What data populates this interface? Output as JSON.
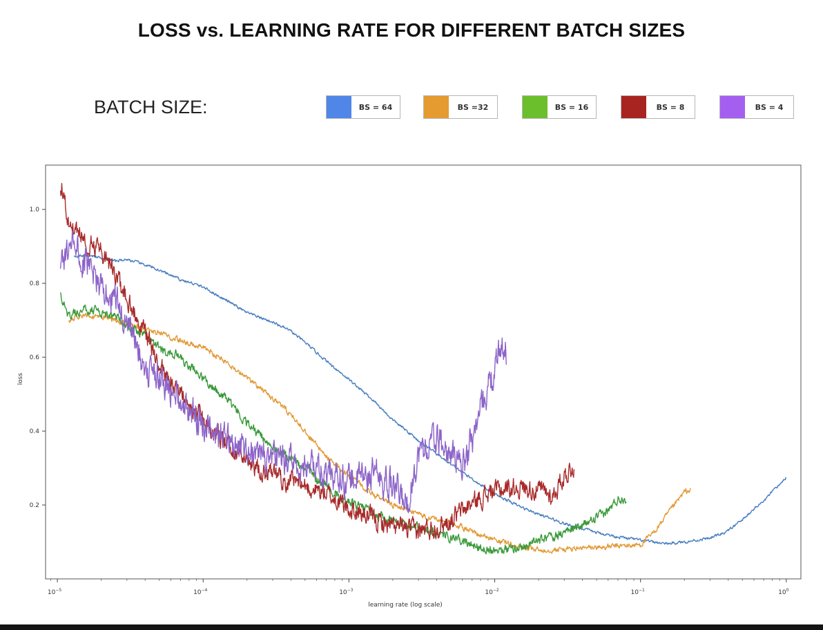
{
  "chart_data": {
    "type": "line",
    "title": "LOSS vs. LEARNING RATE  FOR DIFFERENT BATCH SIZES",
    "legend_title": "BATCH SIZE:",
    "xlabel": "learning rate (log scale)",
    "ylabel": "loss",
    "x_scale": "log",
    "xlim": [
      8.3e-06,
      1.26
    ],
    "ylim": [
      0.0,
      1.12
    ],
    "x_ticks": [
      {
        "value": 1e-05,
        "base": "10",
        "exp": "−5"
      },
      {
        "value": 0.0001,
        "base": "10",
        "exp": "−4"
      },
      {
        "value": 0.001,
        "base": "10",
        "exp": "−3"
      },
      {
        "value": 0.01,
        "base": "10",
        "exp": "−2"
      },
      {
        "value": 0.1,
        "base": "10",
        "exp": "−1"
      },
      {
        "value": 1,
        "base": "10",
        "exp": "0"
      }
    ],
    "y_ticks": [
      "0.2",
      "0.4",
      "0.6",
      "0.8",
      "1.0"
    ],
    "legend_placement": "top",
    "grid": false,
    "series": [
      {
        "name": "BS = 64",
        "color": "#4f86e8",
        "line_color": "#4a7fc1",
        "noise": 0.003,
        "points": [
          [
            1.3e-05,
            0.875
          ],
          [
            1.6e-05,
            0.875
          ],
          [
            2e-05,
            0.87
          ],
          [
            2.5e-05,
            0.86
          ],
          [
            3e-05,
            0.865
          ],
          [
            4e-05,
            0.85
          ],
          [
            5e-05,
            0.835
          ],
          [
            7e-05,
            0.81
          ],
          [
            0.0001,
            0.79
          ],
          [
            0.00015,
            0.75
          ],
          [
            0.0002,
            0.72
          ],
          [
            0.0003,
            0.695
          ],
          [
            0.0004,
            0.67
          ],
          [
            0.0005,
            0.64
          ],
          [
            0.0007,
            0.59
          ],
          [
            0.001,
            0.54
          ],
          [
            0.0015,
            0.48
          ],
          [
            0.002,
            0.43
          ],
          [
            0.003,
            0.375
          ],
          [
            0.005,
            0.31
          ],
          [
            0.008,
            0.255
          ],
          [
            0.01,
            0.23
          ],
          [
            0.015,
            0.195
          ],
          [
            0.02,
            0.175
          ],
          [
            0.03,
            0.15
          ],
          [
            0.05,
            0.125
          ],
          [
            0.08,
            0.11
          ],
          [
            0.12,
            0.1
          ],
          [
            0.15,
            0.095
          ],
          [
            0.2,
            0.1
          ],
          [
            0.3,
            0.11
          ],
          [
            0.4,
            0.13
          ],
          [
            0.5,
            0.16
          ],
          [
            0.6,
            0.19
          ],
          [
            0.7,
            0.21
          ],
          [
            0.8,
            0.235
          ],
          [
            0.9,
            0.255
          ],
          [
            1.0,
            0.275
          ]
        ]
      },
      {
        "name": "BS =32",
        "color": "#e59b2f",
        "line_color": "#e39a36",
        "noise": 0.006,
        "points": [
          [
            1.2e-05,
            0.7
          ],
          [
            1.5e-05,
            0.715
          ],
          [
            2e-05,
            0.71
          ],
          [
            2.5e-05,
            0.7
          ],
          [
            3e-05,
            0.69
          ],
          [
            4e-05,
            0.675
          ],
          [
            5e-05,
            0.665
          ],
          [
            7e-05,
            0.645
          ],
          [
            0.0001,
            0.625
          ],
          [
            0.00013,
            0.6
          ],
          [
            0.0002,
            0.545
          ],
          [
            0.0003,
            0.49
          ],
          [
            0.0004,
            0.445
          ],
          [
            0.0005,
            0.4
          ],
          [
            0.0007,
            0.33
          ],
          [
            0.001,
            0.28
          ],
          [
            0.0015,
            0.225
          ],
          [
            0.002,
            0.2
          ],
          [
            0.003,
            0.175
          ],
          [
            0.005,
            0.15
          ],
          [
            0.007,
            0.13
          ],
          [
            0.01,
            0.105
          ],
          [
            0.015,
            0.085
          ],
          [
            0.02,
            0.078
          ],
          [
            0.03,
            0.08
          ],
          [
            0.05,
            0.085
          ],
          [
            0.08,
            0.09
          ],
          [
            0.1,
            0.092
          ],
          [
            0.12,
            0.12
          ],
          [
            0.15,
            0.17
          ],
          [
            0.2,
            0.235
          ],
          [
            0.22,
            0.24
          ]
        ]
      },
      {
        "name": "BS = 16",
        "color": "#6cbf2c",
        "line_color": "#3a9a3a",
        "noise": 0.01,
        "points": [
          [
            1.05e-05,
            0.77
          ],
          [
            1.2e-05,
            0.71
          ],
          [
            1.5e-05,
            0.73
          ],
          [
            2e-05,
            0.72
          ],
          [
            2.5e-05,
            0.705
          ],
          [
            3e-05,
            0.69
          ],
          [
            4e-05,
            0.655
          ],
          [
            5e-05,
            0.625
          ],
          [
            7e-05,
            0.6
          ],
          [
            0.0001,
            0.54
          ],
          [
            0.00015,
            0.48
          ],
          [
            0.0002,
            0.42
          ],
          [
            0.0003,
            0.36
          ],
          [
            0.0005,
            0.3
          ],
          [
            0.0007,
            0.25
          ],
          [
            0.001,
            0.21
          ],
          [
            0.0015,
            0.175
          ],
          [
            0.002,
            0.155
          ],
          [
            0.003,
            0.14
          ],
          [
            0.005,
            0.11
          ],
          [
            0.008,
            0.085
          ],
          [
            0.01,
            0.08
          ],
          [
            0.015,
            0.085
          ],
          [
            0.02,
            0.105
          ],
          [
            0.03,
            0.125
          ],
          [
            0.04,
            0.145
          ],
          [
            0.05,
            0.165
          ],
          [
            0.06,
            0.185
          ],
          [
            0.07,
            0.215
          ],
          [
            0.08,
            0.22
          ]
        ]
      },
      {
        "name": "BS = 8",
        "color": "#a72421",
        "line_color": "#a82a2a",
        "noise": 0.022,
        "points": [
          [
            1.05e-05,
            1.07
          ],
          [
            1.1e-05,
            1.05
          ],
          [
            1.2e-05,
            0.97
          ],
          [
            1.3e-05,
            0.95
          ],
          [
            1.5e-05,
            0.92
          ],
          [
            2e-05,
            0.89
          ],
          [
            2.5e-05,
            0.82
          ],
          [
            3e-05,
            0.76
          ],
          [
            4e-05,
            0.66
          ],
          [
            5e-05,
            0.58
          ],
          [
            7e-05,
            0.5
          ],
          [
            0.0001,
            0.43
          ],
          [
            0.00015,
            0.36
          ],
          [
            0.0002,
            0.32
          ],
          [
            0.0003,
            0.28
          ],
          [
            0.0005,
            0.25
          ],
          [
            0.0007,
            0.23
          ],
          [
            0.001,
            0.19
          ],
          [
            0.0015,
            0.16
          ],
          [
            0.002,
            0.14
          ],
          [
            0.003,
            0.13
          ],
          [
            0.004,
            0.14
          ],
          [
            0.005,
            0.16
          ],
          [
            0.006,
            0.185
          ],
          [
            0.008,
            0.22
          ],
          [
            0.01,
            0.24
          ],
          [
            0.015,
            0.25
          ],
          [
            0.02,
            0.24
          ],
          [
            0.025,
            0.225
          ],
          [
            0.03,
            0.28
          ],
          [
            0.035,
            0.305
          ]
        ]
      },
      {
        "name": "BS = 4",
        "color": "#a45ff0",
        "line_color": "#8c64c8",
        "noise": 0.035,
        "points": [
          [
            1.05e-05,
            0.85
          ],
          [
            1.2e-05,
            0.89
          ],
          [
            1.3e-05,
            0.92
          ],
          [
            1.5e-05,
            0.86
          ],
          [
            2e-05,
            0.8
          ],
          [
            2.5e-05,
            0.75
          ],
          [
            3e-05,
            0.7
          ],
          [
            4e-05,
            0.58
          ],
          [
            5e-05,
            0.55
          ],
          [
            7e-05,
            0.49
          ],
          [
            0.0001,
            0.42
          ],
          [
            0.00015,
            0.37
          ],
          [
            0.0002,
            0.35
          ],
          [
            0.0003,
            0.32
          ],
          [
            0.0005,
            0.31
          ],
          [
            0.0007,
            0.29
          ],
          [
            0.001,
            0.27
          ],
          [
            0.0015,
            0.28
          ],
          [
            0.002,
            0.25
          ],
          [
            0.0025,
            0.2
          ],
          [
            0.003,
            0.34
          ],
          [
            0.004,
            0.38
          ],
          [
            0.005,
            0.33
          ],
          [
            0.006,
            0.31
          ],
          [
            0.007,
            0.38
          ],
          [
            0.008,
            0.46
          ],
          [
            0.009,
            0.52
          ],
          [
            0.01,
            0.55
          ],
          [
            0.011,
            0.64
          ],
          [
            0.012,
            0.61
          ]
        ]
      }
    ]
  }
}
